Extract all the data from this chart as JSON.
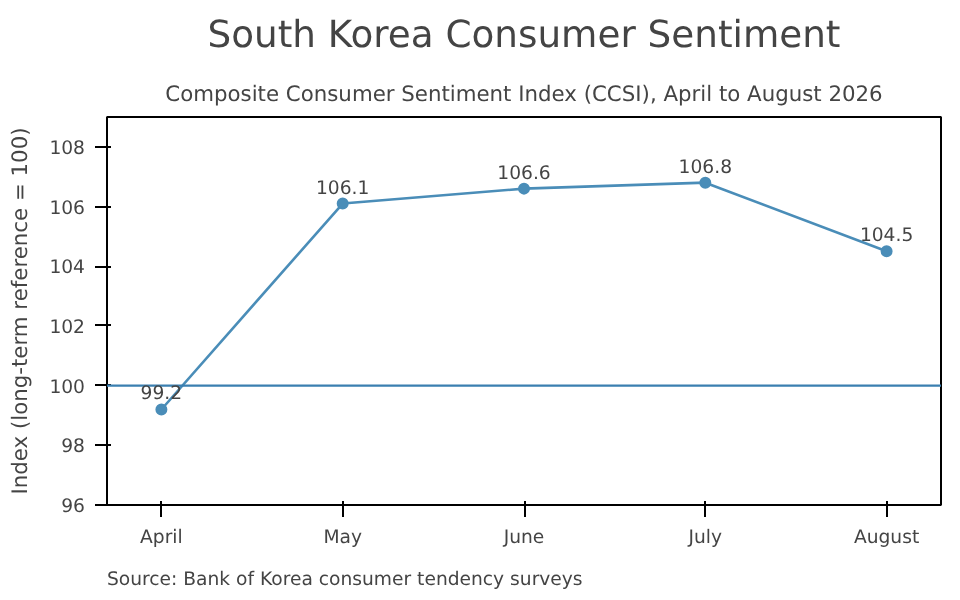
{
  "chart_data": {
    "type": "line",
    "title": "South Korea Consumer Sentiment",
    "subtitle": "Composite Consumer Sentiment Index (CCSI), April to August 2026",
    "ylabel": "Index (long-term reference = 100)",
    "categories": [
      "April",
      "May",
      "June",
      "July",
      "August"
    ],
    "series": [
      {
        "color": "#4a8db8",
        "values": [
          99.2,
          106.1,
          106.6,
          106.8,
          104.5
        ]
      }
    ],
    "ylim": [
      96,
      109
    ],
    "yticks": [
      96,
      98,
      100,
      102,
      104,
      106,
      108
    ],
    "ref_lines": [
      {
        "axis": "y",
        "value": 100,
        "label": null,
        "color": "#3a7fb0"
      }
    ],
    "data_labels": true,
    "marker": "circle",
    "line_style": "solid",
    "grid": false,
    "annotations": [
      "Source: Bank of Korea consumer tendency surveys"
    ]
  }
}
